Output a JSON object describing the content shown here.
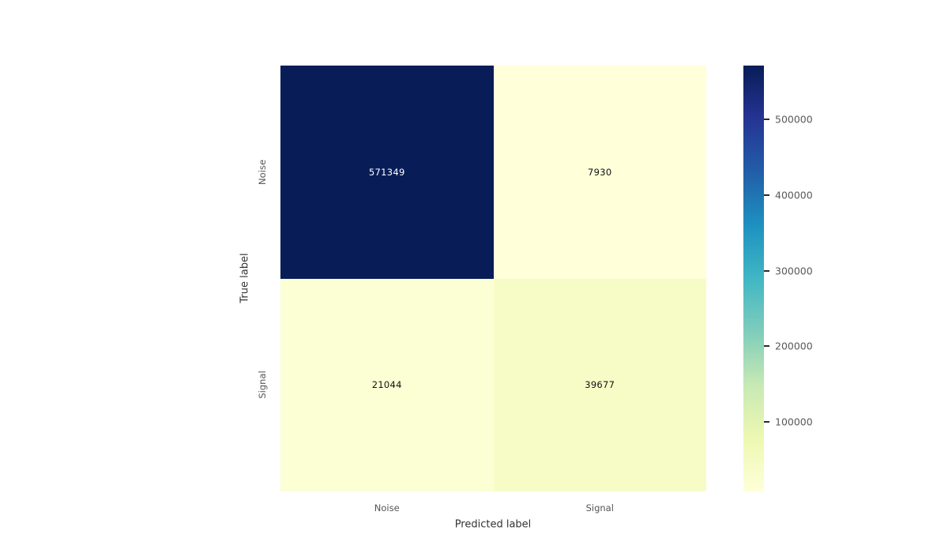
{
  "figure": {
    "background_color": "#ffffff",
    "tick_label_color": "#555555",
    "axis_label_color": "#333333",
    "colorbar_tick_label_color": "#595959"
  },
  "chart_data": {
    "type": "heatmap",
    "title": "",
    "xlabel": "Predicted label",
    "ylabel": "True label",
    "x_categories": [
      "Noise",
      "Signal"
    ],
    "y_categories": [
      "Noise",
      "Signal"
    ],
    "values": [
      [
        571349,
        7930
      ],
      [
        21044,
        39677
      ]
    ],
    "vmin": 7930,
    "vmax": 571349,
    "colormap": "YlGnBu",
    "cell_colors": [
      [
        "#081d58",
        "#ffffd9"
      ],
      [
        "#fcfed3",
        "#f7fcc7"
      ]
    ],
    "cell_text_colors": [
      [
        "#ffffff",
        "#111111"
      ],
      [
        "#111111",
        "#111111"
      ]
    ],
    "colorbar": {
      "position": "right",
      "ticks": [
        {
          "value": 100000,
          "label": "100000"
        },
        {
          "value": 200000,
          "label": "200000"
        },
        {
          "value": 300000,
          "label": "300000"
        },
        {
          "value": 400000,
          "label": "400000"
        },
        {
          "value": 500000,
          "label": "500000"
        }
      ],
      "gradient_stops": [
        {
          "color": "#ffffd9",
          "pos": "0%"
        },
        {
          "color": "#edf8b1",
          "pos": "12.5%"
        },
        {
          "color": "#c7e9b4",
          "pos": "25%"
        },
        {
          "color": "#7fcdbb",
          "pos": "37.5%"
        },
        {
          "color": "#41b6c4",
          "pos": "50%"
        },
        {
          "color": "#1d91c0",
          "pos": "62.5%"
        },
        {
          "color": "#225ea8",
          "pos": "75%"
        },
        {
          "color": "#253494",
          "pos": "87.5%"
        },
        {
          "color": "#081d58",
          "pos": "100%"
        }
      ]
    },
    "grid": false,
    "legend": false
  }
}
